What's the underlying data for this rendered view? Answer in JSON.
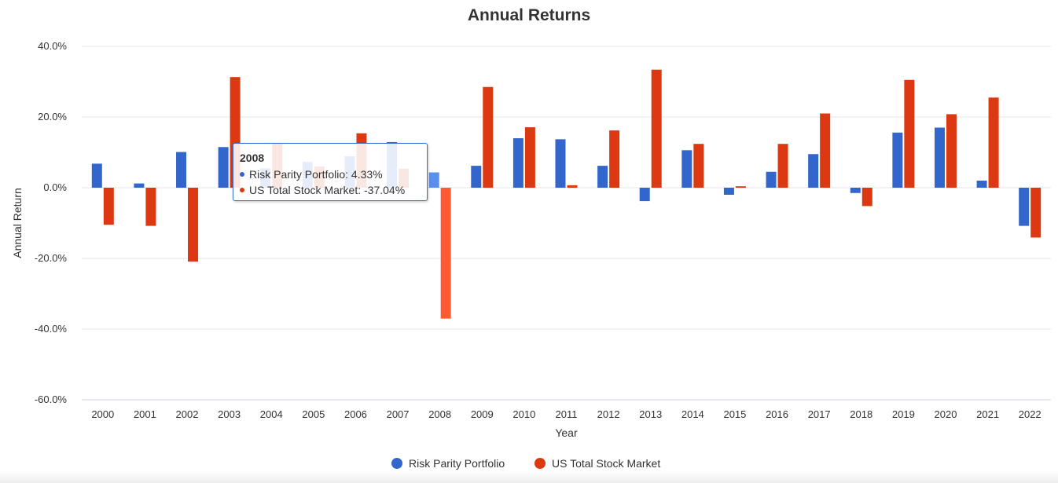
{
  "chart_data": {
    "type": "bar",
    "title": "Annual Returns",
    "xlabel": "Year",
    "ylabel": "Annual Return",
    "ylim": [
      -60,
      40
    ],
    "yticks": [
      "-60.0%",
      "-40.0%",
      "-20.0%",
      "0.0%",
      "20.0%",
      "40.0%"
    ],
    "ytick_values": [
      -60,
      -40,
      -20,
      0,
      20,
      40
    ],
    "grid": true,
    "legend_position": "bottom",
    "categories": [
      "2000",
      "2001",
      "2002",
      "2003",
      "2004",
      "2005",
      "2006",
      "2007",
      "2008",
      "2009",
      "2010",
      "2011",
      "2012",
      "2013",
      "2014",
      "2015",
      "2016",
      "2017",
      "2018",
      "2019",
      "2020",
      "2021",
      "2022"
    ],
    "series": [
      {
        "name": "Risk Parity Portfolio",
        "color": "#3366cc",
        "values": [
          6.8,
          1.2,
          10.1,
          11.5,
          5.5,
          7.3,
          8.9,
          12.9,
          4.33,
          6.2,
          14.0,
          13.7,
          6.2,
          -3.8,
          10.6,
          -2.0,
          4.5,
          9.5,
          -1.5,
          15.6,
          17.0,
          2.0,
          -10.8
        ]
      },
      {
        "name": "US Total Stock Market",
        "color": "#dc3912",
        "values": [
          -10.5,
          -10.8,
          -20.9,
          31.3,
          12.5,
          6.0,
          15.4,
          5.4,
          -37.04,
          28.5,
          17.1,
          0.7,
          16.2,
          33.4,
          12.4,
          0.4,
          12.4,
          21.0,
          -5.2,
          30.5,
          20.8,
          25.5,
          -14.1
        ]
      }
    ],
    "tooltip": {
      "title": "2008",
      "rows": [
        {
          "label": "Risk Parity Portfolio: 4.33%",
          "color": "#3366cc"
        },
        {
          "label": "US Total Stock Market: -37.04%",
          "color": "#dc3912"
        }
      ]
    }
  }
}
